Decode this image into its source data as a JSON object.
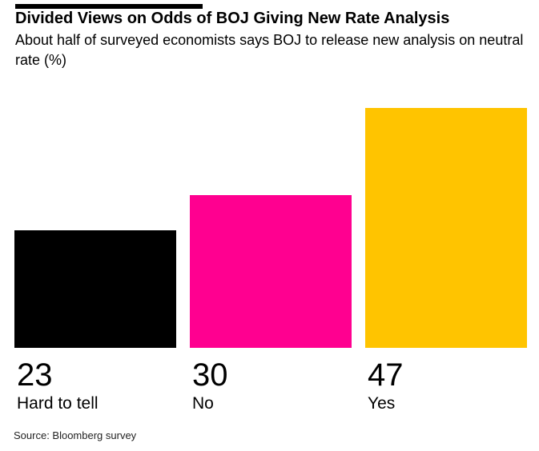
{
  "header": {
    "title": "Divided Views on Odds of BOJ Giving New Rate Analysis",
    "subtitle": "About half of surveyed economists says BOJ to release new analysis on neutral rate (%)"
  },
  "chart_data": {
    "type": "bar",
    "title": "Divided Views on Odds of BOJ Giving New Rate Analysis",
    "subtitle": "About half of surveyed economists says BOJ to release new analysis on neutral rate (%)",
    "categories": [
      "Hard to tell",
      "No",
      "Yes"
    ],
    "values": [
      23,
      30,
      47
    ],
    "value_labels": [
      "23",
      "30",
      "47"
    ],
    "colors": [
      "#000000",
      "#FF0090",
      "#FFC400"
    ],
    "unit": "%",
    "ylim": [
      0,
      47
    ],
    "grid": false,
    "legend_position": "none",
    "axes_shown": false,
    "source": "Source: Bloomberg survey"
  },
  "footer": {
    "source": "Source: Bloomberg survey"
  }
}
